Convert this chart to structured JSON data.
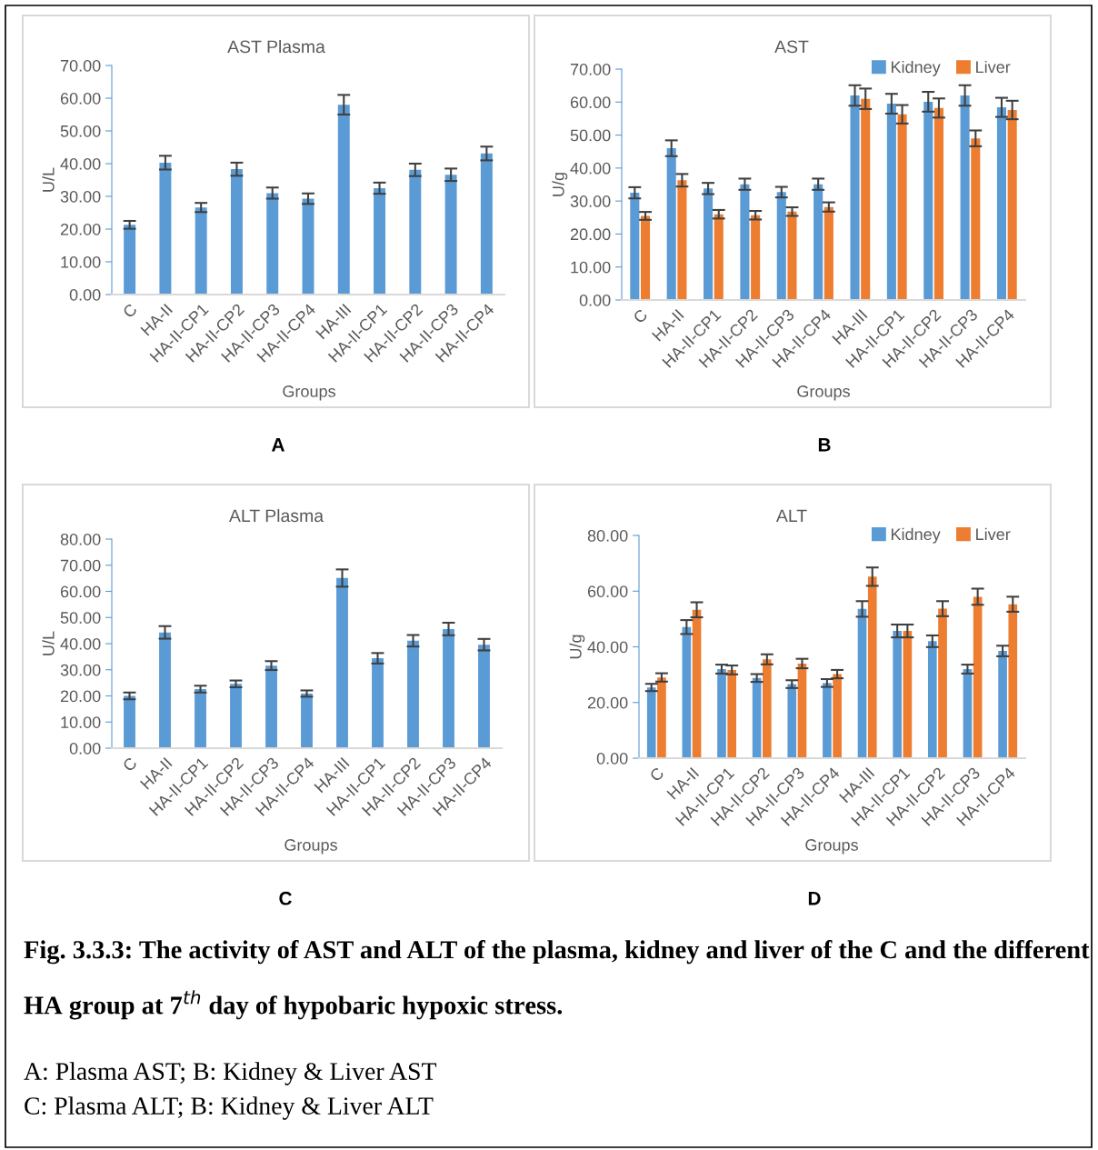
{
  "chart_data": [
    {
      "type": "bar",
      "title": "AST Plasma",
      "xlabel": "Groups",
      "ylabel": "U/L",
      "categories": [
        "C",
        "HA-II",
        "HA-II-CP1",
        "HA-II-CP2",
        "HA-II-CP3",
        "HA-II-CP4",
        "HA-III",
        "HA-II-CP1",
        "HA-II-CP2",
        "HA-II-CP3",
        "HA-II-CP4"
      ],
      "series": [
        {
          "color": "#5b9bd5",
          "values": [
            21.3,
            40.3,
            26.6,
            38.3,
            31.0,
            29.3,
            58.0,
            32.5,
            38.1,
            36.6,
            43.1
          ],
          "errors": [
            1.2,
            2.1,
            1.4,
            2.0,
            1.7,
            1.6,
            3.0,
            1.7,
            1.9,
            1.9,
            2.1
          ]
        }
      ],
      "ylim": [
        0,
        70
      ],
      "yticks": [
        {
          "value": 0,
          "label": "0.00"
        },
        {
          "value": 10,
          "label": "10.00"
        },
        {
          "value": 20,
          "label": "20.00"
        },
        {
          "value": 30,
          "label": "30.00"
        },
        {
          "value": 40,
          "label": "40.00"
        },
        {
          "value": 50,
          "label": "50.00"
        },
        {
          "value": 60,
          "label": "60.00"
        },
        {
          "value": 70,
          "label": "70.00"
        }
      ],
      "annotations": [
        "A"
      ]
    },
    {
      "type": "bar",
      "title": "AST",
      "xlabel": "Groups",
      "ylabel": "U/g",
      "legend": "top right",
      "categories": [
        "C",
        "HA-II",
        "HA-II-CP1",
        "HA-II-CP2",
        "HA-II-CP3",
        "HA-II-CP4",
        "HA-III",
        "HA-II-CP1",
        "HA-II-CP2",
        "HA-II-CP3",
        "HA-II-CP4"
      ],
      "series": [
        {
          "name": "Kidney",
          "color": "#5b9bd5",
          "values": [
            32.5,
            46.0,
            33.8,
            35.1,
            32.7,
            35.1,
            62.0,
            59.5,
            60.1,
            62.0,
            58.4
          ],
          "errors": [
            1.7,
            2.4,
            1.7,
            1.7,
            1.6,
            1.7,
            3.1,
            3.0,
            3.0,
            3.1,
            2.9
          ]
        },
        {
          "name": "Liver",
          "color": "#ed7d31",
          "values": [
            25.5,
            36.3,
            26.0,
            25.7,
            26.8,
            28.2,
            61.0,
            56.3,
            58.2,
            49.0,
            57.6
          ],
          "errors": [
            1.2,
            1.9,
            1.3,
            1.3,
            1.3,
            1.4,
            3.1,
            2.8,
            2.9,
            2.4,
            2.8
          ]
        }
      ],
      "ylim": [
        0,
        70
      ],
      "yticks": [
        {
          "value": 0,
          "label": "0.00"
        },
        {
          "value": 10,
          "label": "10.00"
        },
        {
          "value": 20,
          "label": "20.00"
        },
        {
          "value": 30,
          "label": "30.00"
        },
        {
          "value": 40,
          "label": "40.00"
        },
        {
          "value": 50,
          "label": "50.00"
        },
        {
          "value": 60,
          "label": "60.00"
        },
        {
          "value": 70,
          "label": "70.00"
        }
      ],
      "annotations": [
        "B"
      ]
    },
    {
      "type": "bar",
      "title": "ALT Plasma",
      "xlabel": "Groups",
      "ylabel": "U/L",
      "categories": [
        "C",
        "HA-II",
        "HA-II-CP1",
        "HA-II-CP2",
        "HA-II-CP3",
        "HA-II-CP4",
        "HA-III",
        "HA-II-CP1",
        "HA-II-CP2",
        "HA-II-CP3",
        "HA-II-CP4"
      ],
      "series": [
        {
          "color": "#5b9bd5",
          "values": [
            20.0,
            44.3,
            22.6,
            24.6,
            31.6,
            20.9,
            65.1,
            34.4,
            41.1,
            45.6,
            39.6
          ],
          "errors": [
            1.3,
            2.4,
            1.3,
            1.3,
            1.7,
            1.2,
            3.3,
            2.0,
            2.2,
            2.4,
            2.2
          ]
        }
      ],
      "ylim": [
        0,
        80
      ],
      "yticks": [
        {
          "value": 0,
          "label": "0.00"
        },
        {
          "value": 10,
          "label": "10.00"
        },
        {
          "value": 20,
          "label": "20.00"
        },
        {
          "value": 30,
          "label": "30.00"
        },
        {
          "value": 40,
          "label": "40.00"
        },
        {
          "value": 50,
          "label": "50.00"
        },
        {
          "value": 60,
          "label": "60.00"
        },
        {
          "value": 70,
          "label": "70.00"
        },
        {
          "value": 80,
          "label": "80.00"
        }
      ],
      "annotations": [
        "C"
      ]
    },
    {
      "type": "bar",
      "title": "ALT",
      "xlabel": "Groups",
      "ylabel": "U/g",
      "legend": "top right",
      "categories": [
        "C",
        "HA-II",
        "HA-II-CP1",
        "HA-II-CP2",
        "HA-II-CP3",
        "HA-II-CP4",
        "HA-III",
        "HA-II-CP1",
        "HA-II-CP2",
        "HA-II-CP3",
        "HA-II-CP4"
      ],
      "series": [
        {
          "name": "Kidney",
          "color": "#5b9bd5",
          "values": [
            25.4,
            47.1,
            32.0,
            28.8,
            26.6,
            27.0,
            53.6,
            45.7,
            42.0,
            32.0,
            38.5
          ],
          "errors": [
            1.3,
            2.5,
            1.6,
            1.4,
            1.4,
            1.4,
            2.8,
            2.3,
            2.1,
            1.6,
            1.9
          ]
        },
        {
          "name": "Liver",
          "color": "#ed7d31",
          "values": [
            29.0,
            53.3,
            31.7,
            35.5,
            34.0,
            30.2,
            65.2,
            45.7,
            53.7,
            58.0,
            55.3
          ],
          "errors": [
            1.5,
            2.7,
            1.6,
            1.8,
            1.7,
            1.5,
            3.3,
            2.3,
            2.7,
            2.9,
            2.7
          ]
        }
      ],
      "ylim": [
        0,
        80
      ],
      "yticks": [
        {
          "value": 0,
          "label": "0.00"
        },
        {
          "value": 20,
          "label": "20.00"
        },
        {
          "value": 40,
          "label": "40.00"
        },
        {
          "value": 60,
          "label": "60.00"
        },
        {
          "value": 80,
          "label": "80.00"
        }
      ],
      "annotations": [
        "D",
        "Fig. 3.3.3: The activity of AST and ALT of the plasma, kidney and liver of the C and the different HA group at 7$^{th}$ day of hypobaric hypoxic stress.",
        "A: Plasma AST; B: Kidney & Liver AST",
        "C: Plasma ALT; B: Kidney & Liver ALT"
      ]
    }
  ]
}
